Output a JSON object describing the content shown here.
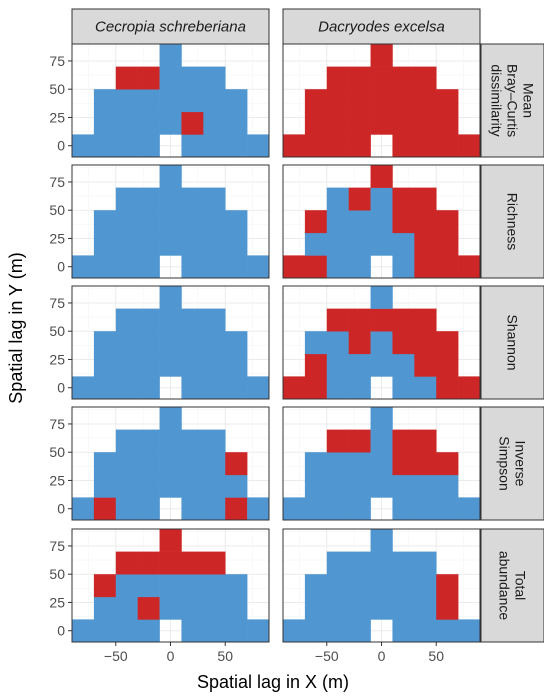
{
  "chart_data": {
    "type": "heatmap",
    "xlabel": "Spatial lag in X (m)",
    "ylabel": "Spatial lag in Y (m)",
    "columns": [
      "Cecropia schreberiana",
      "Dacryodes excelsa"
    ],
    "rows": [
      [
        "Mean",
        "Bray–Curtis",
        "dissimilarity"
      ],
      [
        "Richness"
      ],
      [
        "Shannon"
      ],
      [
        "Inverse",
        "Simpson"
      ],
      [
        "Total",
        "abundance"
      ]
    ],
    "x_ticks": [
      -50,
      0,
      50
    ],
    "x_tick_labels": [
      "−50",
      "0",
      "50"
    ],
    "y_ticks": [
      0,
      25,
      50,
      75
    ],
    "y_tick_labels": [
      "0",
      "25",
      "50",
      "75"
    ],
    "xlim": [
      -90,
      90
    ],
    "ylim": [
      -10,
      90
    ],
    "cell_size": 20,
    "lag_x": [
      -80,
      -60,
      -40,
      -20,
      0,
      20,
      40,
      60,
      80
    ],
    "lag_y": [
      0,
      20,
      40,
      60,
      80
    ],
    "colors": {
      "neg": "#cd2626",
      "pos": "#5096d0",
      "strip": "#d9d9d9"
    },
    "legend": "none",
    "grid": true,
    "note_values": "Cell codes per row from lag y = 0 (row 1) to lag y = 80 (row 5), x from -80 to 80: 'B' = blue, 'R' = red, '.' = empty",
    "panels": [
      {
        "row": 0,
        "col": 0,
        "cells": [
          "BBBB.BBBB",
          ".BBBBRBB.",
          ".BBBBBBB.",
          "..RRBBB..",
          "....B...."
        ]
      },
      {
        "row": 0,
        "col": 1,
        "cells": [
          "RRRR.RRRR",
          ".RRRRRRR.",
          ".RRRRRRR.",
          "..RRRRR..",
          "....R...."
        ]
      },
      {
        "row": 1,
        "col": 0,
        "cells": [
          "BBBB.BBBB",
          ".BBBBBBB.",
          ".BBBBBBB.",
          "..BBBBB..",
          "....B...."
        ]
      },
      {
        "row": 1,
        "col": 1,
        "cells": [
          "RRBB.BRRR",
          ".BBBBBRR.",
          ".RBBBRRR.",
          "..BRBRR..",
          "....R...."
        ]
      },
      {
        "row": 2,
        "col": 0,
        "cells": [
          "BBBB.BBBB",
          ".BBBBBBB.",
          ".BBBBBBB.",
          "..BBBBB..",
          "....B...."
        ]
      },
      {
        "row": 2,
        "col": 1,
        "cells": [
          "RRBB.BBRR",
          ".RBBBBRR.",
          ".BBRBRRR.",
          "..RRRRR..",
          "....B...."
        ]
      },
      {
        "row": 3,
        "col": 0,
        "cells": [
          "BRBB.BBRB",
          ".BBBBBBB.",
          ".BBBBBBR.",
          "..BBBBB..",
          "....B...."
        ]
      },
      {
        "row": 3,
        "col": 1,
        "cells": [
          "BBBB.BBBB",
          ".BBBBBBB.",
          ".BBBBRRR.",
          "..RRBRR..",
          "....B...."
        ]
      },
      {
        "row": 4,
        "col": 0,
        "cells": [
          "BBBB.BBBB",
          ".BBRBBBB.",
          ".RBBBBBB.",
          "..RRRRR..",
          "....R...."
        ]
      },
      {
        "row": 4,
        "col": 1,
        "cells": [
          "BBBB.BBBB",
          ".BBBBBBR.",
          ".BBBBBBR.",
          "..BBBBB..",
          "....B...."
        ]
      }
    ]
  }
}
